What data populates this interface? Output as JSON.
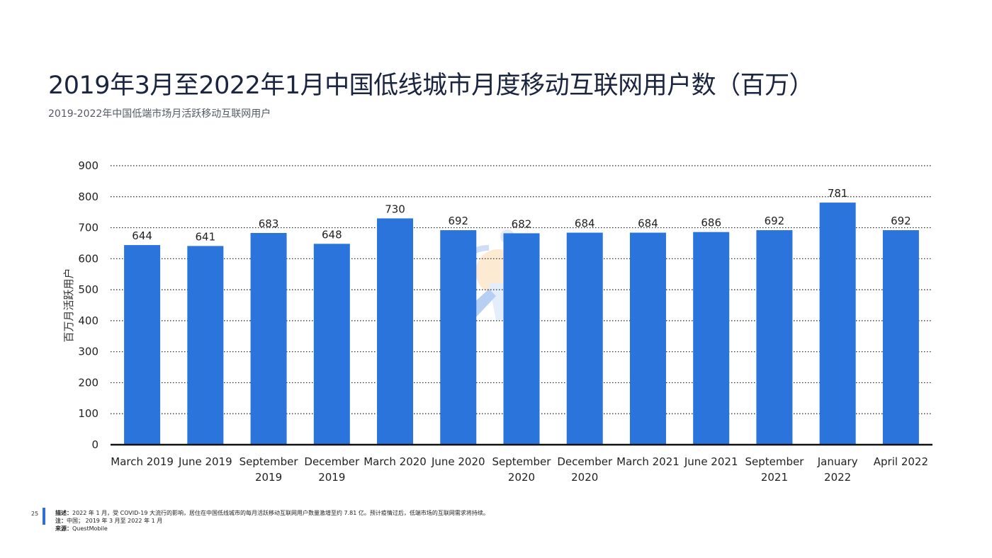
{
  "title": "2019年3月至2022年1月中国低线城市月度移动互联网用户数（百万）",
  "subtitle": "2019-2022年中国低端市场月活跃移动互联网用户",
  "page_number": "25",
  "footnotes": {
    "description_label": "描述：",
    "description_text": "2022 年 1 月，受 COVID-19 大流行的影响，居住在中国低线城市的每月活跃移动互联网用户数量激增至约 7.81 亿。预计疫情过后，低端市场的互联网需求将持续。",
    "note_label": "注：",
    "note_text": "中国； 2019 年 3 月至 2022 年 1 月",
    "source_label": "来源：",
    "source_text": "QuestMobile"
  },
  "colors": {
    "bar": "#2a74db",
    "grid": "#222222",
    "axis": "#111111"
  },
  "chart_data": {
    "type": "bar",
    "categories": [
      [
        "March 2019"
      ],
      [
        "June 2019"
      ],
      [
        "September",
        "2019"
      ],
      [
        "December",
        "2019"
      ],
      [
        "March 2020"
      ],
      [
        "June 2020"
      ],
      [
        "September",
        "2020"
      ],
      [
        "December",
        "2020"
      ],
      [
        "March 2021"
      ],
      [
        "June 2021"
      ],
      [
        "September",
        "2021"
      ],
      [
        "January",
        "2022"
      ],
      [
        "April 2022"
      ]
    ],
    "values": [
      644,
      641,
      683,
      648,
      730,
      692,
      682,
      684,
      684,
      686,
      692,
      781,
      692
    ],
    "ylabel": "百万月活跃用户",
    "ylim": [
      0,
      900
    ],
    "yticks": [
      0,
      100,
      200,
      300,
      400,
      500,
      600,
      700,
      800,
      900
    ],
    "grid": true,
    "grid_style": "dotted"
  }
}
